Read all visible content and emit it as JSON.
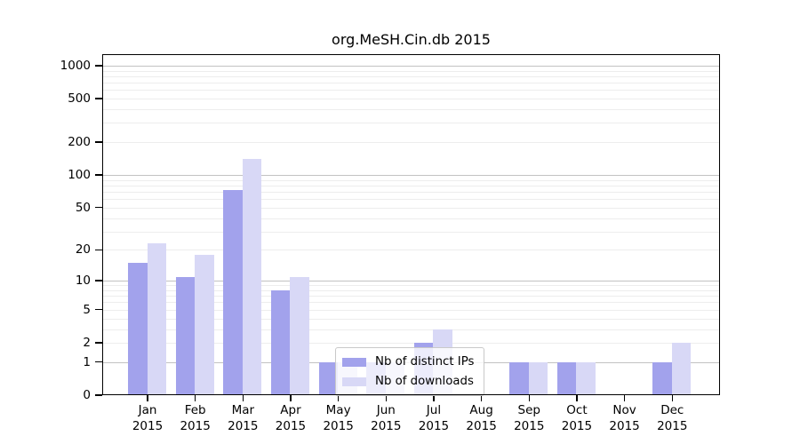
{
  "title": "org.MeSH.Cin.db 2015",
  "colors": {
    "ips_bar": "#a2a2ec",
    "downloads_bar": "#d8d8f6",
    "grid_minor": "#ededed",
    "grid_major": "#c2c2c2",
    "axis": "#000000",
    "legend_border": "#c9c9c9"
  },
  "chart_data": {
    "type": "bar",
    "title": "org.MeSH.Cin.db 2015",
    "categories": [
      "Jan 2015",
      "Feb 2015",
      "Mar 2015",
      "Apr 2015",
      "May 2015",
      "Jun 2015",
      "Jul 2015",
      "Aug 2015",
      "Sep 2015",
      "Oct 2015",
      "Nov 2015",
      "Dec 2015"
    ],
    "series": [
      {
        "name": "Nb of distinct IPs",
        "color": "#a2a2ec",
        "values": [
          15,
          11,
          73,
          8,
          1,
          1,
          2,
          0,
          1,
          1,
          0,
          1
        ]
      },
      {
        "name": "Nb of downloads",
        "color": "#d8d8f6",
        "values": [
          23,
          18,
          140,
          11,
          1,
          1,
          3,
          0,
          1,
          1,
          0,
          2
        ]
      }
    ],
    "xlabel": "",
    "ylabel": "",
    "y_scale": "log1p",
    "ylim": [
      0,
      1271
    ],
    "y_ticks": [
      0,
      1,
      2,
      5,
      10,
      20,
      50,
      100,
      200,
      500,
      1000
    ],
    "y_grid_major": [
      1,
      10,
      100,
      1000
    ],
    "grid": "horizontal",
    "legend_position": "inside-bottom-center"
  },
  "legend": {
    "items": [
      "Nb of distinct IPs",
      "Nb of downloads"
    ]
  }
}
